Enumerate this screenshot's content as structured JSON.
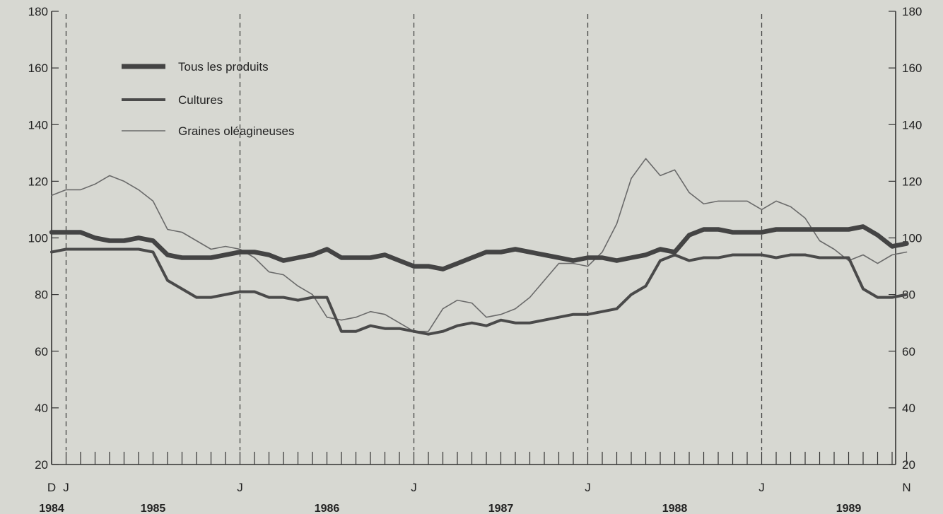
{
  "chart_data": {
    "type": "line",
    "title": "",
    "xlabel": "",
    "ylabel": "",
    "ylim": [
      20,
      180
    ],
    "yticks": [
      20,
      40,
      60,
      80,
      100,
      120,
      140,
      160,
      180
    ],
    "y_tick_labels": [
      "20",
      "40",
      "60",
      "80",
      "100",
      "120",
      "140",
      "160",
      "180"
    ],
    "x_range": [
      "1984-12",
      "1989-11"
    ],
    "month_labels": [
      {
        "date": "1984-12",
        "label": "D"
      },
      {
        "date": "1985-01",
        "label": "J"
      },
      {
        "date": "1986-01",
        "label": "J"
      },
      {
        "date": "1987-01",
        "label": "J"
      },
      {
        "date": "1988-01",
        "label": "J"
      },
      {
        "date": "1989-01",
        "label": "J"
      },
      {
        "date": "1989-11",
        "label": "N"
      }
    ],
    "year_labels": [
      {
        "date": "1984-12",
        "label": "1984"
      },
      {
        "date": "1985-07",
        "label": "1985"
      },
      {
        "date": "1986-07",
        "label": "1986"
      },
      {
        "date": "1987-07",
        "label": "1987"
      },
      {
        "date": "1988-07",
        "label": "1988"
      },
      {
        "date": "1989-07",
        "label": "1989"
      }
    ],
    "vertical_dashed_lines": [
      "1985-01",
      "1986-01",
      "1987-01",
      "1988-01",
      "1989-01"
    ],
    "grid": false,
    "legend_position": "top-left",
    "x": [
      "1984-12",
      "1985-01",
      "1985-02",
      "1985-03",
      "1985-04",
      "1985-05",
      "1985-06",
      "1985-07",
      "1985-08",
      "1985-09",
      "1985-10",
      "1985-11",
      "1985-12",
      "1986-01",
      "1986-02",
      "1986-03",
      "1986-04",
      "1986-05",
      "1986-06",
      "1986-07",
      "1986-08",
      "1986-09",
      "1986-10",
      "1986-11",
      "1986-12",
      "1987-01",
      "1987-02",
      "1987-03",
      "1987-04",
      "1987-05",
      "1987-06",
      "1987-07",
      "1987-08",
      "1987-09",
      "1987-10",
      "1987-11",
      "1987-12",
      "1988-01",
      "1988-02",
      "1988-03",
      "1988-04",
      "1988-05",
      "1988-06",
      "1988-07",
      "1988-08",
      "1988-09",
      "1988-10",
      "1988-11",
      "1988-12",
      "1989-01",
      "1989-02",
      "1989-03",
      "1989-04",
      "1989-05",
      "1989-06",
      "1989-07",
      "1989-08",
      "1989-09",
      "1989-10",
      "1989-11"
    ],
    "series": [
      {
        "name": "Tous les produits",
        "color": "#444444",
        "values": [
          102,
          102,
          102,
          100,
          99,
          99,
          100,
          99,
          94,
          93,
          93,
          93,
          94,
          95,
          95,
          94,
          92,
          93,
          94,
          96,
          93,
          93,
          93,
          94,
          92,
          90,
          90,
          89,
          91,
          93,
          95,
          95,
          96,
          95,
          94,
          93,
          92,
          93,
          93,
          92,
          93,
          94,
          96,
          95,
          101,
          103,
          103,
          102,
          102,
          102,
          103,
          103,
          103,
          103,
          103,
          103,
          104,
          101,
          97,
          98
        ]
      },
      {
        "name": "Cultures",
        "color": "#4a4a4a",
        "values": [
          95,
          96,
          96,
          96,
          96,
          96,
          96,
          95,
          85,
          82,
          79,
          79,
          80,
          81,
          81,
          79,
          79,
          78,
          79,
          79,
          67,
          67,
          69,
          68,
          68,
          67,
          66,
          67,
          69,
          70,
          69,
          71,
          70,
          70,
          71,
          72,
          73,
          73,
          74,
          75,
          80,
          83,
          92,
          94,
          92,
          93,
          93,
          94,
          94,
          94,
          93,
          94,
          94,
          93,
          93,
          93,
          82,
          79,
          79,
          80
        ]
      },
      {
        "name": "Graines oléagineuses",
        "color": "#6a6a6a",
        "values": [
          115,
          117,
          117,
          119,
          122,
          120,
          117,
          113,
          103,
          102,
          99,
          96,
          97,
          96,
          93,
          88,
          87,
          83,
          80,
          72,
          71,
          72,
          74,
          73,
          70,
          67,
          67,
          75,
          78,
          77,
          72,
          73,
          75,
          79,
          85,
          91,
          91,
          90,
          95,
          105,
          121,
          128,
          122,
          124,
          116,
          112,
          113,
          113,
          113,
          110,
          113,
          111,
          107,
          99,
          96,
          92,
          94,
          91,
          94,
          95
        ]
      }
    ]
  }
}
